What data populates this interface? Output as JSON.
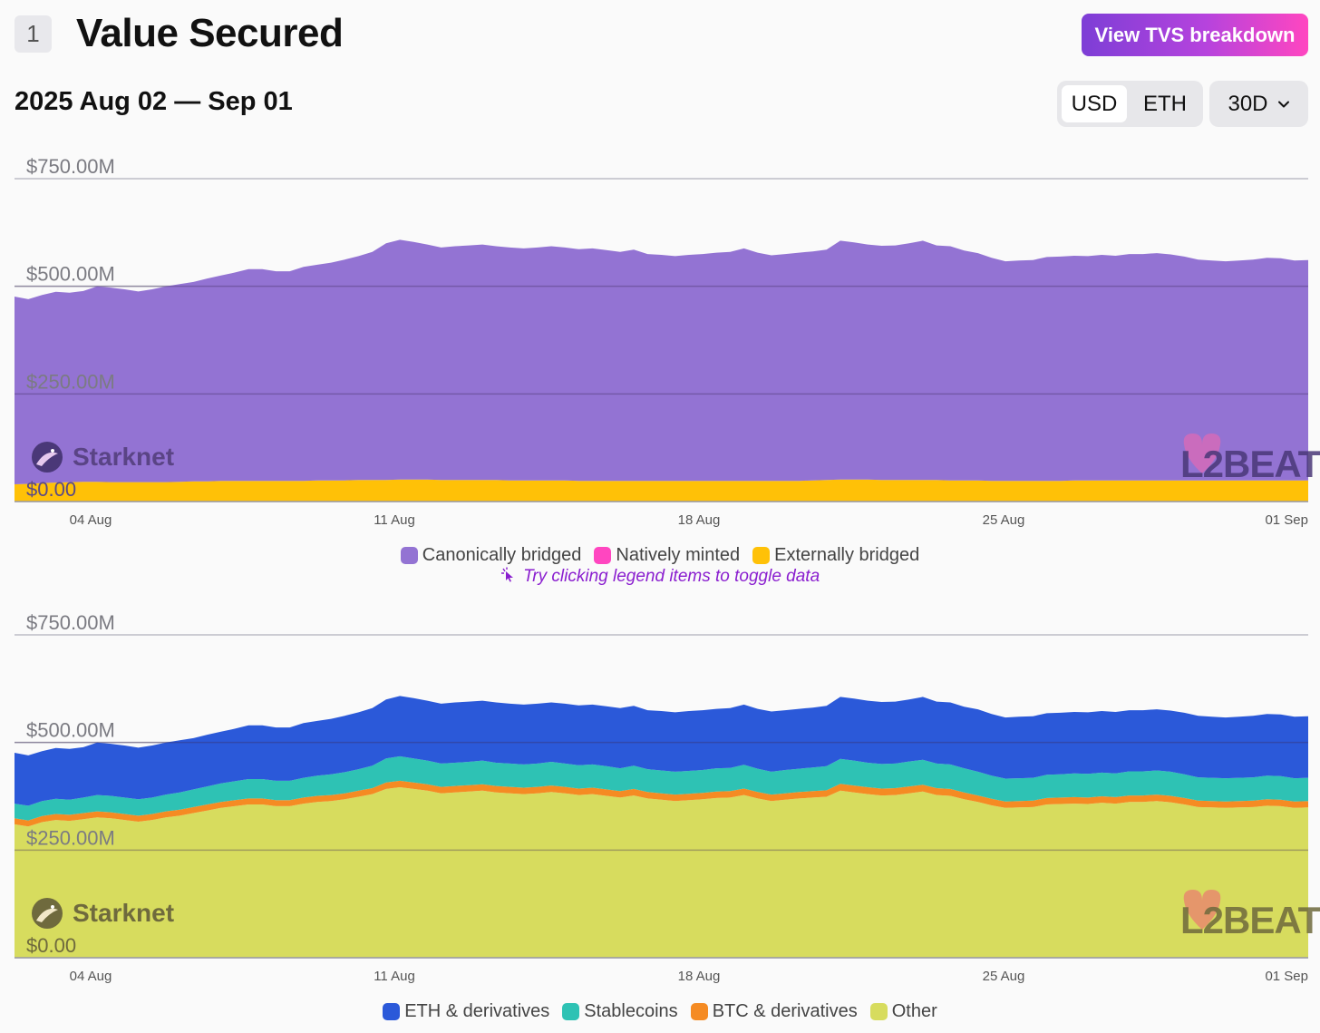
{
  "header": {
    "section_number": "1",
    "title": "Value Secured",
    "breakdown_button": "View TVS breakdown",
    "date_range": "2025 Aug 02 — Sep 01",
    "units": [
      "USD",
      "ETH"
    ],
    "active_unit": "USD",
    "range": "30D"
  },
  "colors": {
    "canonical": "#9373d3",
    "native": "#ff46c0",
    "external": "#ffc107",
    "eth": "#2b59d9",
    "stable": "#2ec2b4",
    "btc": "#f58b23",
    "other": "#d7dc5e"
  },
  "hint": "Try clicking legend items to toggle data",
  "chart_data": [
    {
      "type": "area",
      "stacked": true,
      "title": "",
      "project_label": "Starknet",
      "watermark": "L2BEAT",
      "x_ticks": [
        "04 Aug",
        "11 Aug",
        "18 Aug",
        "25 Aug",
        "01 Sep"
      ],
      "y_ticks": [
        "$0.00",
        "$250.00M",
        "$500.00M",
        "$750.00M"
      ],
      "ylim": [
        0,
        750
      ],
      "y_unit": "M USD",
      "x_start": "2025-08-02",
      "x_end": "2025-09-01",
      "totals": [
        476,
        470,
        480,
        487,
        485,
        489,
        500,
        497,
        493,
        488,
        493,
        500,
        505,
        510,
        518,
        525,
        532,
        540,
        540,
        535,
        535,
        545,
        550,
        555,
        562,
        570,
        580,
        600,
        608,
        603,
        597,
        590,
        593,
        595,
        597,
        593,
        590,
        588,
        590,
        593,
        590,
        586,
        588,
        584,
        580,
        585,
        575,
        573,
        570,
        573,
        575,
        578,
        580,
        588,
        578,
        572,
        575,
        578,
        581,
        585,
        606,
        602,
        597,
        594,
        595,
        600,
        606,
        595,
        593,
        583,
        577,
        566,
        558,
        560,
        561,
        568,
        569,
        571,
        570,
        573,
        571,
        575,
        575,
        577,
        574,
        569,
        562,
        560,
        558,
        560,
        562,
        566,
        565,
        560,
        561
      ],
      "series": [
        {
          "name": "Externally bridged",
          "values": [
            40,
            41,
            43,
            44,
            45,
            46,
            46,
            45,
            45,
            45,
            45,
            45,
            46,
            47,
            47,
            48,
            48,
            48,
            48,
            48,
            48,
            48,
            49,
            49,
            49,
            50,
            50,
            50,
            51,
            51,
            51,
            50,
            50,
            50,
            50,
            50,
            49,
            49,
            49,
            49,
            49,
            48,
            48,
            48,
            48,
            48,
            48,
            48,
            48,
            48,
            48,
            48,
            48,
            48,
            48,
            48,
            48,
            48,
            49,
            50,
            51,
            51,
            51,
            50,
            50,
            50,
            50,
            50,
            49,
            49,
            49,
            48,
            48,
            48,
            48,
            48,
            48,
            49,
            49,
            49,
            49,
            49,
            49,
            49,
            49,
            49,
            49,
            49,
            49,
            49,
            49,
            49,
            49,
            49,
            49
          ]
        },
        {
          "name": "Natively minted",
          "values": [
            0,
            0,
            0,
            0,
            0,
            0,
            0,
            0,
            0,
            0,
            0,
            0,
            0,
            0,
            0,
            0,
            0,
            0,
            0,
            0,
            0,
            0,
            0,
            0,
            0,
            0,
            0,
            0,
            0,
            0,
            0,
            0,
            0,
            0,
            0,
            0,
            0,
            0,
            0,
            0,
            0,
            0,
            0,
            0,
            0,
            0,
            0,
            0,
            0,
            0,
            0,
            0,
            0,
            0,
            0,
            0,
            0,
            0,
            0,
            0,
            0,
            0,
            0,
            0,
            0,
            0,
            0,
            0,
            0,
            0,
            0,
            0,
            0,
            0,
            0,
            0,
            0,
            0,
            0,
            0,
            0,
            0,
            0,
            0,
            0,
            0,
            0,
            0,
            0,
            0,
            0,
            0,
            0,
            0,
            0
          ]
        },
        {
          "name": "Canonically bridged",
          "values": [
            436,
            429,
            437,
            443,
            440,
            443,
            454,
            452,
            448,
            443,
            448,
            455,
            459,
            463,
            471,
            477,
            484,
            492,
            492,
            487,
            487,
            497,
            501,
            506,
            513,
            520,
            530,
            550,
            557,
            552,
            546,
            540,
            543,
            545,
            547,
            543,
            541,
            539,
            541,
            544,
            541,
            538,
            540,
            536,
            532,
            537,
            527,
            525,
            522,
            525,
            527,
            530,
            532,
            540,
            530,
            524,
            527,
            530,
            532,
            535,
            555,
            551,
            546,
            544,
            545,
            550,
            556,
            545,
            544,
            534,
            528,
            518,
            510,
            512,
            513,
            520,
            521,
            522,
            521,
            524,
            522,
            526,
            526,
            528,
            525,
            520,
            513,
            511,
            509,
            511,
            513,
            517,
            516,
            511,
            512
          ]
        }
      ],
      "legend": [
        "Canonically bridged",
        "Natively minted",
        "Externally bridged"
      ]
    },
    {
      "type": "area",
      "stacked": true,
      "title": "",
      "project_label": "Starknet",
      "watermark": "L2BEAT",
      "x_ticks": [
        "04 Aug",
        "11 Aug",
        "18 Aug",
        "25 Aug",
        "01 Sep"
      ],
      "y_ticks": [
        "$0.00",
        "$250.00M",
        "$500.00M",
        "$750.00M"
      ],
      "ylim": [
        0,
        750
      ],
      "y_unit": "M USD",
      "x_start": "2025-08-02",
      "x_end": "2025-09-01",
      "series": [
        {
          "name": "Other",
          "values": [
            310,
            305,
            315,
            320,
            318,
            322,
            326,
            324,
            320,
            316,
            320,
            326,
            330,
            336,
            342,
            348,
            352,
            356,
            356,
            352,
            352,
            358,
            362,
            364,
            368,
            374,
            380,
            392,
            396,
            392,
            388,
            382,
            384,
            386,
            388,
            384,
            382,
            380,
            382,
            385,
            382,
            378,
            380,
            376,
            372,
            377,
            370,
            367,
            364,
            366,
            368,
            371,
            372,
            378,
            370,
            364,
            367,
            370,
            372,
            374,
            388,
            384,
            380,
            377,
            378,
            382,
            386,
            378,
            376,
            368,
            362,
            354,
            348,
            349,
            350,
            356,
            357,
            358,
            357,
            360,
            358,
            362,
            362,
            364,
            361,
            356,
            350,
            349,
            348,
            349,
            350,
            353,
            352,
            348,
            349
          ]
        },
        {
          "name": "BTC & derivatives",
          "values": [
            14,
            14,
            14,
            14,
            14,
            14,
            14,
            14,
            14,
            14,
            14,
            14,
            14,
            14,
            14,
            14,
            14,
            14,
            14,
            14,
            14,
            14,
            14,
            14,
            14,
            14,
            14,
            15,
            15,
            15,
            15,
            15,
            15,
            15,
            15,
            15,
            15,
            15,
            15,
            15,
            15,
            15,
            15,
            15,
            15,
            15,
            15,
            15,
            15,
            15,
            15,
            15,
            15,
            15,
            15,
            15,
            15,
            15,
            15,
            15,
            16,
            16,
            16,
            16,
            16,
            16,
            16,
            16,
            16,
            16,
            15,
            15,
            15,
            15,
            15,
            15,
            15,
            15,
            15,
            15,
            15,
            15,
            15,
            15,
            15,
            15,
            15,
            15,
            15,
            15,
            15,
            15,
            15,
            15,
            15
          ]
        },
        {
          "name": "Stablecoins",
          "values": [
            34,
            34,
            35,
            35,
            35,
            36,
            38,
            38,
            38,
            38,
            38,
            39,
            40,
            41,
            42,
            43,
            44,
            45,
            45,
            45,
            45,
            46,
            47,
            48,
            49,
            50,
            52,
            56,
            57,
            56,
            55,
            54,
            54,
            54,
            55,
            54,
            54,
            54,
            54,
            55,
            54,
            54,
            54,
            54,
            53,
            54,
            53,
            53,
            53,
            53,
            53,
            54,
            54,
            55,
            54,
            53,
            54,
            54,
            55,
            56,
            58,
            58,
            57,
            57,
            57,
            58,
            58,
            57,
            57,
            56,
            55,
            54,
            53,
            53,
            53,
            54,
            54,
            55,
            55,
            55,
            55,
            56,
            56,
            56,
            56,
            55,
            54,
            54,
            54,
            54,
            54,
            55,
            55,
            54,
            54
          ]
        },
        {
          "name": "ETH & derivatives",
          "values": [
            118,
            117,
            116,
            118,
            118,
            117,
            122,
            121,
            121,
            120,
            121,
            121,
            121,
            119,
            120,
            120,
            122,
            125,
            125,
            124,
            124,
            127,
            127,
            129,
            131,
            132,
            134,
            137,
            140,
            140,
            139,
            139,
            140,
            140,
            139,
            140,
            139,
            139,
            139,
            138,
            139,
            139,
            139,
            139,
            140,
            139,
            137,
            138,
            138,
            139,
            139,
            138,
            139,
            140,
            139,
            140,
            139,
            139,
            139,
            140,
            144,
            144,
            144,
            144,
            144,
            144,
            146,
            144,
            144,
            143,
            145,
            143,
            142,
            143,
            143,
            143,
            143,
            143,
            143,
            143,
            143,
            142,
            142,
            142,
            142,
            143,
            143,
            142,
            141,
            142,
            143,
            143,
            143,
            143,
            143
          ]
        }
      ],
      "legend": [
        "ETH & derivatives",
        "Stablecoins",
        "BTC & derivatives",
        "Other"
      ]
    }
  ]
}
